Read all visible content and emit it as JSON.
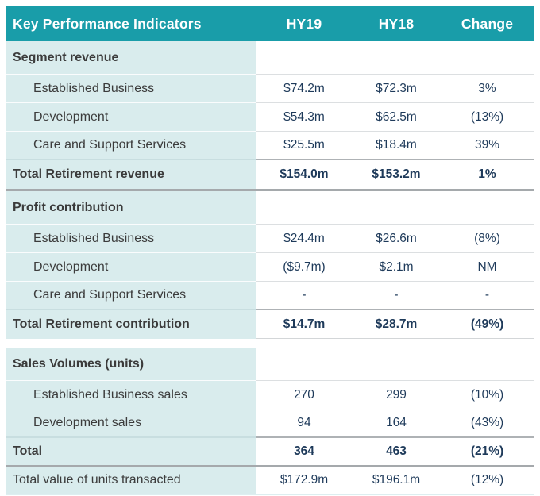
{
  "colors": {
    "header_bg": "#199DA9",
    "header_text": "#FFFFFF",
    "label_col_bg": "#D9ECED",
    "label_text": "#3B3B3B",
    "value_text": "#1E3A5A"
  },
  "table": {
    "header": {
      "kpi": "Key Performance Indicators",
      "hy19": "HY19",
      "hy18": "HY18",
      "change": "Change"
    },
    "sections": [
      {
        "title": "Segment revenue",
        "rows": [
          {
            "label": "Established Business",
            "hy19": "$74.2m",
            "hy18": "$72.3m",
            "change": "3%"
          },
          {
            "label": "Development",
            "hy19": "$54.3m",
            "hy18": "$62.5m",
            "change": "(13%)"
          },
          {
            "label": "Care and Support Services",
            "hy19": "$25.5m",
            "hy18": "$18.4m",
            "change": "39%"
          }
        ],
        "total": {
          "label": "Total Retirement revenue",
          "hy19": "$154.0m",
          "hy18": "$153.2m",
          "change": "1%"
        }
      },
      {
        "title": "Profit contribution",
        "rows": [
          {
            "label": "Established Business",
            "hy19": "$24.4m",
            "hy18": "$26.6m",
            "change": "(8%)"
          },
          {
            "label": "Development",
            "hy19": "($9.7m)",
            "hy18": "$2.1m",
            "change": "NM"
          },
          {
            "label": "Care and Support Services",
            "hy19": "-",
            "hy18": "-",
            "change": "-"
          }
        ],
        "total": {
          "label": "Total Retirement contribution",
          "hy19": "$14.7m",
          "hy18": "$28.7m",
          "change": "(49%)"
        }
      },
      {
        "title": "Sales Volumes (units)",
        "rows": [
          {
            "label": "Established Business sales",
            "hy19": "270",
            "hy18": "299",
            "change": "(10%)"
          },
          {
            "label": "Development sales",
            "hy19": "94",
            "hy18": "164",
            "change": "(43%)"
          }
        ],
        "total": {
          "label": "Total",
          "hy19": "364",
          "hy18": "463",
          "change": "(21%)"
        }
      }
    ],
    "footer_row": {
      "label": "Total value of units transacted",
      "hy19": "$172.9m",
      "hy18": "$196.1m",
      "change": "(12%)"
    }
  }
}
